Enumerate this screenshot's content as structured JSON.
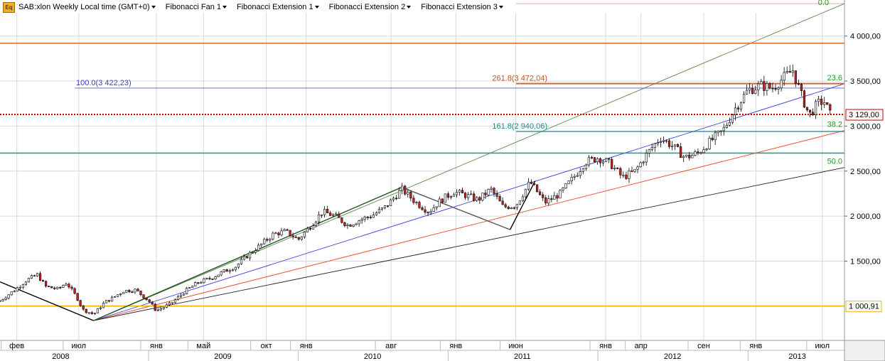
{
  "header": {
    "icon": "eq-icon",
    "instrument_label": "SAB:xlon Weekly Local time (GMT+0)",
    "tools": [
      "Fibonacci Fan 1",
      "Fibonacci Extension 1",
      "Fibonacci Extension 2",
      "Fibonacci Extension 3"
    ]
  },
  "chart_data": {
    "type": "candlestick",
    "ylim": [
      620,
      4400
    ],
    "y_ticks": [
      {
        "v": 1500,
        "label": "1 500,00"
      },
      {
        "v": 2000,
        "label": "2 000,00"
      },
      {
        "v": 2500,
        "label": "2 500,00"
      },
      {
        "v": 3000,
        "label": "3 000,00"
      },
      {
        "v": 3500,
        "label": "3 500,00"
      },
      {
        "v": 4000,
        "label": "4 000,00"
      }
    ],
    "x_range": [
      "2008-01-05",
      "2013-08-24"
    ],
    "month_labels": [
      {
        "date": "2008-02-15",
        "label": "фев"
      },
      {
        "date": "2008-07-15",
        "label": "июл"
      },
      {
        "date": "2009-01-20",
        "label": "янв"
      },
      {
        "date": "2009-05-15",
        "label": "май"
      },
      {
        "date": "2009-10-15",
        "label": "окт"
      },
      {
        "date": "2010-01-20",
        "label": "янв"
      },
      {
        "date": "2010-08-15",
        "label": "авг"
      },
      {
        "date": "2011-01-20",
        "label": "янв"
      },
      {
        "date": "2011-06-15",
        "label": "июн"
      },
      {
        "date": "2012-01-20",
        "label": "янв"
      },
      {
        "date": "2012-04-15",
        "label": "апр"
      },
      {
        "date": "2012-09-15",
        "label": "сен"
      },
      {
        "date": "2013-01-20",
        "label": "янв"
      },
      {
        "date": "2013-07-01",
        "label": "июл"
      }
    ],
    "year_labels": [
      {
        "date": "2008-06-01",
        "label": "2008"
      },
      {
        "date": "2009-07-01",
        "label": "2009"
      },
      {
        "date": "2010-07-01",
        "label": "2010"
      },
      {
        "date": "2011-07-01",
        "label": "2011"
      },
      {
        "date": "2012-07-01",
        "label": "2012"
      },
      {
        "date": "2013-05-01",
        "label": "2013"
      }
    ],
    "price_path": [
      [
        "2008-01-05",
        1060
      ],
      [
        "2008-02-10",
        1180
      ],
      [
        "2008-03-10",
        1290
      ],
      [
        "2008-04-05",
        1350
      ],
      [
        "2008-04-25",
        1220
      ],
      [
        "2008-05-25",
        1190
      ],
      [
        "2008-06-15",
        1260
      ],
      [
        "2008-07-10",
        1100
      ],
      [
        "2008-07-25",
        960
      ],
      [
        "2008-08-20",
        910
      ],
      [
        "2008-09-15",
        1040
      ],
      [
        "2008-10-05",
        1090
      ],
      [
        "2008-11-01",
        1170
      ],
      [
        "2008-12-01",
        1180
      ],
      [
        "2009-01-01",
        1060
      ],
      [
        "2009-01-20",
        950
      ],
      [
        "2009-02-25",
        1030
      ],
      [
        "2009-04-01",
        1170
      ],
      [
        "2009-05-01",
        1260
      ],
      [
        "2009-06-01",
        1310
      ],
      [
        "2009-07-01",
        1380
      ],
      [
        "2009-08-01",
        1440
      ],
      [
        "2009-09-01",
        1570
      ],
      [
        "2009-10-01",
        1680
      ],
      [
        "2009-11-01",
        1800
      ],
      [
        "2009-12-01",
        1830
      ],
      [
        "2010-01-01",
        1740
      ],
      [
        "2010-02-01",
        1900
      ],
      [
        "2010-03-01",
        2050
      ],
      [
        "2010-04-01",
        2000
      ],
      [
        "2010-05-01",
        1900
      ],
      [
        "2010-06-01",
        1960
      ],
      [
        "2010-07-01",
        2010
      ],
      [
        "2010-08-01",
        2100
      ],
      [
        "2010-09-10",
        2300
      ],
      [
        "2010-10-15",
        2150
      ],
      [
        "2010-11-15",
        2050
      ],
      [
        "2010-12-15",
        2180
      ],
      [
        "2011-01-15",
        2270
      ],
      [
        "2011-02-15",
        2230
      ],
      [
        "2011-03-15",
        2180
      ],
      [
        "2011-04-15",
        2300
      ],
      [
        "2011-05-15",
        2100
      ],
      [
        "2011-06-15",
        2120
      ],
      [
        "2011-07-20",
        2380
      ],
      [
        "2011-08-25",
        2150
      ],
      [
        "2011-10-01",
        2250
      ],
      [
        "2011-11-01",
        2420
      ],
      [
        "2011-12-01",
        2600
      ],
      [
        "2012-01-01",
        2650
      ],
      [
        "2012-02-01",
        2580
      ],
      [
        "2012-03-01",
        2430
      ],
      [
        "2012-04-01",
        2500
      ],
      [
        "2012-05-01",
        2700
      ],
      [
        "2012-06-01",
        2870
      ],
      [
        "2012-07-01",
        2780
      ],
      [
        "2012-08-01",
        2650
      ],
      [
        "2012-09-01",
        2700
      ],
      [
        "2012-10-01",
        2830
      ],
      [
        "2012-11-01",
        2950
      ],
      [
        "2012-12-01",
        3200
      ],
      [
        "2013-01-01",
        3400
      ],
      [
        "2013-02-01",
        3450
      ],
      [
        "2013-03-01",
        3420
      ],
      [
        "2013-04-01",
        3550
      ],
      [
        "2013-04-20",
        3620
      ],
      [
        "2013-05-10",
        3350
      ],
      [
        "2013-05-30",
        3120
      ],
      [
        "2013-06-20",
        3250
      ],
      [
        "2013-07-05",
        3280
      ],
      [
        "2013-07-20",
        3129
      ]
    ],
    "horizontal_lines": [
      {
        "name": "current-price-line",
        "price": 3129,
        "color": "#cc0000",
        "style": "dotted",
        "axis_label": "3 129,00"
      },
      {
        "name": "support-line-1000",
        "price": 1000.91,
        "color": "#e6b800",
        "style": "solid",
        "axis_label": "1 000,91"
      },
      {
        "name": "resistance-line-orange",
        "price": 3920,
        "color": "#e07030",
        "style": "solid"
      },
      {
        "name": "teal-support-line",
        "price": 2700,
        "color": "#339988",
        "style": "solid"
      }
    ],
    "fib_levels": [
      {
        "label": "100.0(3 422,23)",
        "price": 3422.23,
        "from": "2009-01-01",
        "color": "#3344bb"
      },
      {
        "label": "261.8(3 472,04)",
        "price": 3472.04,
        "from": "2011-01-01",
        "color": "#bb5522"
      },
      {
        "label": "161.8(2 940,06)",
        "price": 2940.06,
        "from": "2011-01-01",
        "color": "#228888"
      },
      {
        "label": "0.0",
        "price": 4360,
        "from": "2011-01-01",
        "color": "#ee8888"
      }
    ],
    "fan_lines": [
      {
        "label": "0.0",
        "to_price": 4360,
        "color": "#558844"
      },
      {
        "label": "23.6",
        "to_price": 3470,
        "color": "#3344dd"
      },
      {
        "label": "38.2",
        "to_price": 2950,
        "color": "#ee4422"
      },
      {
        "label": "50.0",
        "to_price": 2540,
        "color": "#222222"
      }
    ],
    "fan_origin": {
      "date": "2008-08-20",
      "price": 840
    },
    "fan_end": "2013-08-24",
    "trend_segments": [
      {
        "from": [
          "2008-01-05",
          1270
        ],
        "to": [
          "2008-08-20",
          840
        ],
        "color": "#000000"
      },
      {
        "from": [
          "2008-08-20",
          840
        ],
        "to": [
          "2010-09-10",
          2320
        ],
        "color": "#225522"
      },
      {
        "from": [
          "2010-09-10",
          2320
        ],
        "to": [
          "2011-06-01",
          1850
        ],
        "color": "#555555"
      },
      {
        "from": [
          "2011-06-01",
          1850
        ],
        "to": [
          "2011-08-01",
          2390
        ],
        "color": "#000000"
      }
    ],
    "last_price_label": "3 129,00",
    "support_price_label": "1 000,91"
  }
}
